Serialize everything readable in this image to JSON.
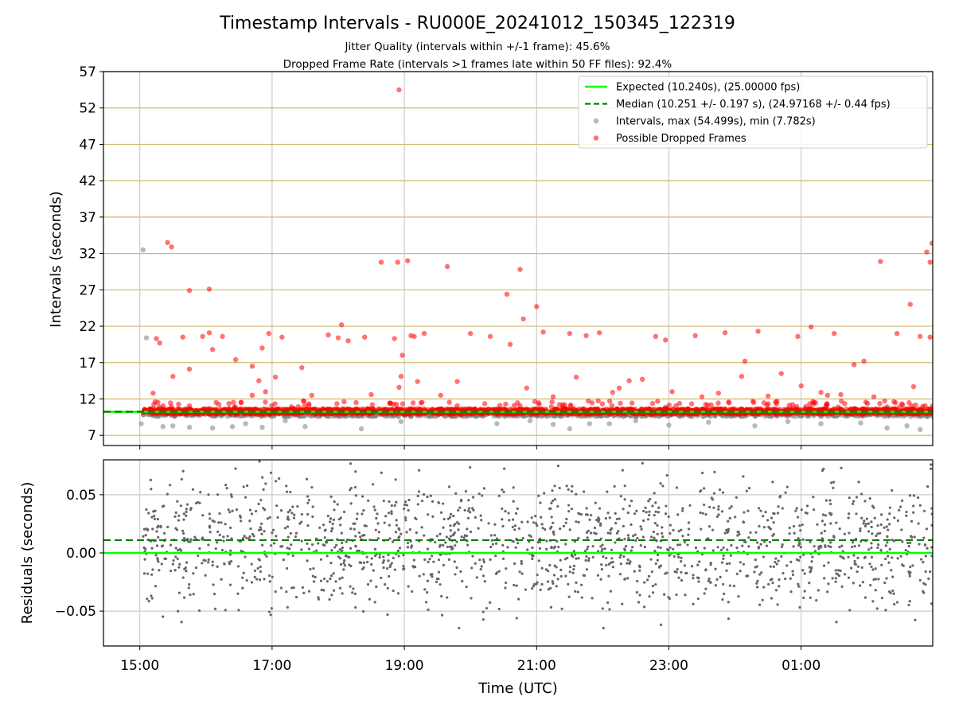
{
  "chart_data": [
    {
      "type": "scatter",
      "panel": "top",
      "title": "Timestamp Intervals - RU000E_20241012_150345_122319",
      "subtitles": [
        "Jitter Quality (intervals within +/-1 frame): 45.6%",
        "Dropped Frame Rate (intervals >1 frames late within 50 FF files): 92.4%"
      ],
      "ylabel": "Intervals (seconds)",
      "ylim": [
        5.6,
        57
      ],
      "yticks": [
        7,
        12,
        17,
        22,
        27,
        32,
        37,
        42,
        47,
        52,
        57
      ],
      "xlim_hours": [
        14.45,
        26.99
      ],
      "xticks": [
        {
          "hour": 15,
          "label": "15:00"
        },
        {
          "hour": 17,
          "label": "17:00"
        },
        {
          "hour": 19,
          "label": "19:00"
        },
        {
          "hour": 21,
          "label": "21:00"
        },
        {
          "hour": 23,
          "label": "23:00"
        },
        {
          "hour": 25,
          "label": "01:00"
        }
      ],
      "grid": true,
      "legend_placement": "top-right",
      "legend": [
        {
          "label": "Expected (10.240s), (25.00000 fps)",
          "style": "line",
          "color": "#00ff00"
        },
        {
          "label": "Median (10.251 +/- 0.197 s), (24.97168 +/- 0.44 fps)",
          "style": "dashed",
          "color": "#008000"
        },
        {
          "label": "Intervals, max (54.499s), min (7.782s)",
          "style": "marker",
          "color": "#808080"
        },
        {
          "label": "Possible Dropped Frames",
          "style": "marker",
          "color": "#ff0000"
        }
      ],
      "expected_interval": 10.24,
      "median_interval": 10.251,
      "band_hours": [
        15.05,
        26.99
      ],
      "series": [
        {
          "name": "Intervals, max (54.499s), min (7.782s)",
          "color": "#808080",
          "points": [
            [
              15.05,
              32.5
            ],
            [
              15.1,
              20.4
            ],
            [
              15.02,
              8.6
            ],
            [
              15.35,
              8.2
            ],
            [
              15.5,
              8.3
            ],
            [
              15.75,
              8.1
            ],
            [
              16.1,
              8.0
            ],
            [
              16.4,
              8.2
            ],
            [
              16.6,
              8.6
            ],
            [
              16.85,
              8.1
            ],
            [
              17.2,
              9.0
            ],
            [
              17.5,
              8.2
            ],
            [
              18.35,
              7.9
            ],
            [
              18.95,
              8.9
            ],
            [
              20.4,
              8.6
            ],
            [
              20.9,
              9.0
            ],
            [
              21.25,
              8.5
            ],
            [
              21.5,
              7.9
            ],
            [
              21.8,
              8.6
            ],
            [
              22.1,
              8.6
            ],
            [
              22.5,
              9.0
            ],
            [
              23.0,
              8.4
            ],
            [
              23.6,
              8.8
            ],
            [
              24.3,
              8.3
            ],
            [
              24.8,
              8.9
            ],
            [
              25.3,
              8.6
            ],
            [
              25.9,
              8.7
            ],
            [
              26.3,
              8.0
            ],
            [
              26.6,
              8.3
            ],
            [
              26.8,
              7.8
            ]
          ]
        },
        {
          "name": "Possible Dropped Frames",
          "color": "#ff0000",
          "points": [
            [
              15.42,
              33.5
            ],
            [
              15.48,
              32.9
            ],
            [
              15.3,
              19.7
            ],
            [
              15.25,
              20.3
            ],
            [
              15.75,
              26.9
            ],
            [
              16.05,
              27.1
            ],
            [
              15.2,
              12.8
            ],
            [
              15.5,
              15.1
            ],
            [
              15.65,
              20.5
            ],
            [
              15.75,
              16.1
            ],
            [
              15.95,
              20.6
            ],
            [
              16.1,
              18.8
            ],
            [
              16.05,
              21.1
            ],
            [
              16.25,
              20.6
            ],
            [
              16.45,
              17.4
            ],
            [
              16.7,
              16.5
            ],
            [
              16.85,
              19.0
            ],
            [
              16.95,
              21.0
            ],
            [
              16.7,
              12.5
            ],
            [
              16.8,
              14.5
            ],
            [
              16.9,
              13.0
            ],
            [
              17.05,
              15.0
            ],
            [
              17.15,
              20.5
            ],
            [
              17.45,
              16.3
            ],
            [
              17.6,
              12.5
            ],
            [
              17.85,
              20.8
            ],
            [
              18.0,
              20.4
            ],
            [
              18.05,
              22.2
            ],
            [
              18.15,
              20.0
            ],
            [
              18.4,
              20.5
            ],
            [
              18.5,
              12.6
            ],
            [
              18.65,
              30.8
            ],
            [
              18.85,
              20.3
            ],
            [
              18.9,
              30.8
            ],
            [
              18.95,
              15.1
            ],
            [
              18.92,
              13.6
            ],
            [
              18.97,
              18.0
            ],
            [
              19.05,
              31.0
            ],
            [
              19.1,
              20.7
            ],
            [
              19.15,
              20.6
            ],
            [
              19.2,
              14.4
            ],
            [
              19.3,
              21.0
            ],
            [
              19.55,
              12.5
            ],
            [
              19.65,
              30.2
            ],
            [
              19.8,
              14.4
            ],
            [
              20.0,
              21.0
            ],
            [
              20.3,
              20.6
            ],
            [
              20.55,
              26.4
            ],
            [
              20.6,
              19.5
            ],
            [
              20.75,
              29.8
            ],
            [
              20.8,
              23.0
            ],
            [
              20.85,
              13.5
            ],
            [
              21.0,
              24.7
            ],
            [
              21.1,
              21.2
            ],
            [
              21.25,
              12.3
            ],
            [
              21.5,
              21.0
            ],
            [
              21.6,
              15.0
            ],
            [
              21.75,
              20.7
            ],
            [
              21.95,
              21.1
            ],
            [
              22.15,
              12.9
            ],
            [
              22.25,
              13.5
            ],
            [
              22.4,
              14.5
            ],
            [
              22.6,
              14.7
            ],
            [
              22.8,
              20.6
            ],
            [
              22.95,
              20.1
            ],
            [
              23.05,
              13.0
            ],
            [
              23.4,
              20.7
            ],
            [
              23.5,
              12.3
            ],
            [
              23.75,
              12.8
            ],
            [
              23.85,
              21.1
            ],
            [
              24.1,
              15.1
            ],
            [
              24.15,
              17.2
            ],
            [
              24.35,
              21.3
            ],
            [
              24.5,
              12.4
            ],
            [
              24.7,
              15.5
            ],
            [
              24.95,
              20.6
            ],
            [
              25.0,
              13.8
            ],
            [
              25.15,
              21.9
            ],
            [
              25.3,
              12.9
            ],
            [
              25.4,
              12.5
            ],
            [
              25.5,
              21.0
            ],
            [
              25.6,
              12.6
            ],
            [
              25.8,
              16.7
            ],
            [
              25.95,
              17.2
            ],
            [
              26.1,
              12.3
            ],
            [
              26.2,
              30.9
            ],
            [
              26.45,
              21.0
            ],
            [
              26.65,
              25.0
            ],
            [
              26.7,
              13.7
            ],
            [
              26.8,
              20.6
            ],
            [
              26.9,
              32.2
            ],
            [
              26.98,
              33.4
            ],
            [
              26.95,
              30.8
            ],
            [
              26.95,
              20.5
            ]
          ]
        }
      ]
    },
    {
      "type": "scatter",
      "panel": "bottom",
      "xlabel": "Time (UTC)",
      "ylabel": "Residuals (seconds)",
      "ylim": [
        -0.08,
        0.08
      ],
      "yticks": [
        {
          "value": 0.05,
          "label": "0.05"
        },
        {
          "value": 0.0,
          "label": "0.00"
        },
        {
          "value": -0.05,
          "label": "−0.05"
        }
      ],
      "xlim_hours": [
        14.45,
        26.99
      ],
      "grid": true,
      "expected_residual": 0.0,
      "median_residual": 0.011,
      "series": [
        {
          "name": "Residuals",
          "color": "#666666",
          "x_range": [
            15.05,
            26.99
          ],
          "y_range": [
            -0.08,
            0.08
          ],
          "count": 1600
        }
      ]
    }
  ]
}
